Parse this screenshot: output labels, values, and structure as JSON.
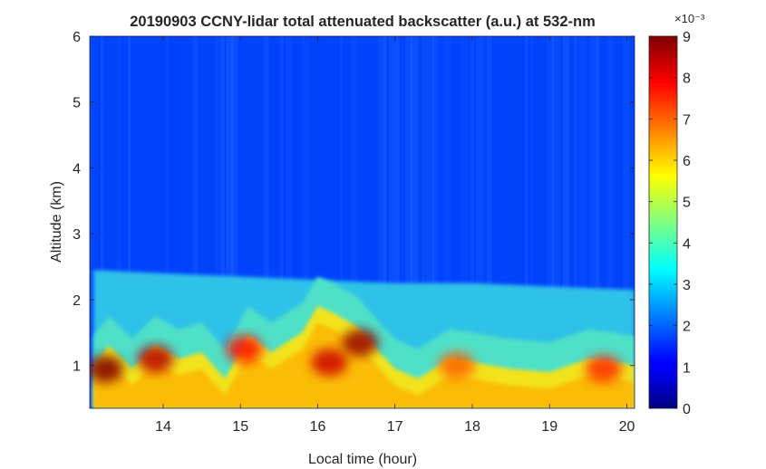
{
  "chart_data": {
    "type": "heatmap",
    "title": "20190903 CCNY-lidar total attenuated backscatter (a.u.) at 532-nm",
    "xlabel": "Local time (hour)",
    "ylabel": "Altitude (km)",
    "xlim": [
      13.05,
      20.1
    ],
    "ylim": [
      0.35,
      6
    ],
    "xticks": [
      14,
      15,
      16,
      17,
      18,
      19,
      20
    ],
    "yticks": [
      1,
      2,
      3,
      4,
      5,
      6
    ],
    "colorbar": {
      "ticks": [
        0,
        1,
        2,
        3,
        4,
        5,
        6,
        7,
        8,
        9
      ],
      "range": [
        0,
        9
      ],
      "exponent_label": "×10⁻³",
      "colormap": "jet"
    },
    "aerosol_layer_top_km": {
      "time": [
        13.1,
        14,
        15,
        16,
        17,
        18,
        19,
        20.1
      ],
      "altitude": [
        2.45,
        2.4,
        2.35,
        2.3,
        2.25,
        2.25,
        2.2,
        2.15
      ]
    },
    "dense_layer_top_km": {
      "time": [
        13.1,
        13.3,
        13.6,
        13.9,
        14.2,
        14.5,
        14.8,
        15.1,
        15.4,
        15.8,
        16.0,
        16.2,
        16.5,
        16.8,
        17.0,
        17.3,
        17.7,
        18.0,
        18.5,
        19.0,
        19.5,
        20.1
      ],
      "altitude": [
        1.0,
        1.3,
        0.95,
        1.3,
        1.1,
        1.2,
        0.8,
        1.45,
        1.2,
        1.5,
        1.9,
        1.8,
        1.6,
        1.2,
        0.95,
        0.8,
        1.1,
        1.05,
        0.95,
        0.9,
        1.1,
        1.0
      ]
    },
    "layer_peaks": [
      {
        "time": 13.25,
        "altitude": 0.95,
        "value": 9
      },
      {
        "time": 13.9,
        "altitude": 1.1,
        "value": 8.5
      },
      {
        "time": 15.05,
        "altitude": 1.25,
        "value": 7.8
      },
      {
        "time": 16.15,
        "altitude": 1.05,
        "value": 8.3
      },
      {
        "time": 16.55,
        "altitude": 1.35,
        "value": 8.8
      },
      {
        "time": 17.8,
        "altitude": 1.0,
        "value": 7.0
      },
      {
        "time": 19.7,
        "altitude": 0.95,
        "value": 7.5
      }
    ],
    "free_troposphere_value": 2.0,
    "upper_value": 1.7
  }
}
